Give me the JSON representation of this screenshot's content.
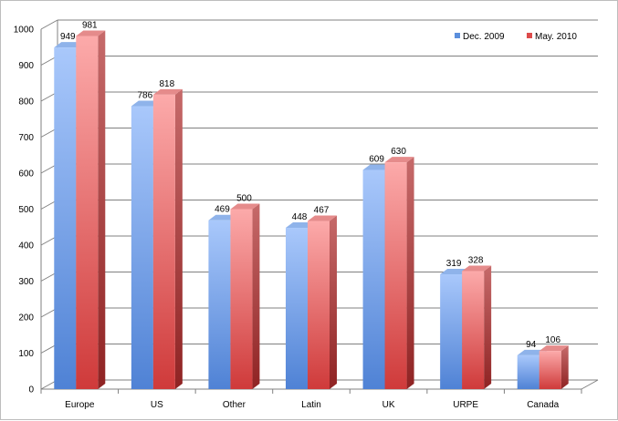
{
  "chart_data": {
    "type": "bar",
    "title": "",
    "xlabel": "",
    "ylabel": "",
    "ylim": [
      0,
      1000
    ],
    "ytick_step": 100,
    "yticks": [
      "0",
      "100",
      "200",
      "300",
      "400",
      "500",
      "600",
      "700",
      "800",
      "900",
      "1000"
    ],
    "grid": true,
    "style": "3d-columns",
    "legend_position": "top-right",
    "categories": [
      "Europe",
      "US",
      "Other",
      "Latin",
      "UK",
      "URPE",
      "Canada"
    ],
    "series": [
      {
        "name": "Dec. 2009",
        "values": [
          949,
          786,
          469,
          448,
          609,
          319,
          94
        ],
        "color": "#5b8fdc"
      },
      {
        "name": "May. 2010",
        "values": [
          981,
          818,
          500,
          467,
          630,
          328,
          106
        ],
        "color": "#dd4b4b"
      }
    ]
  }
}
